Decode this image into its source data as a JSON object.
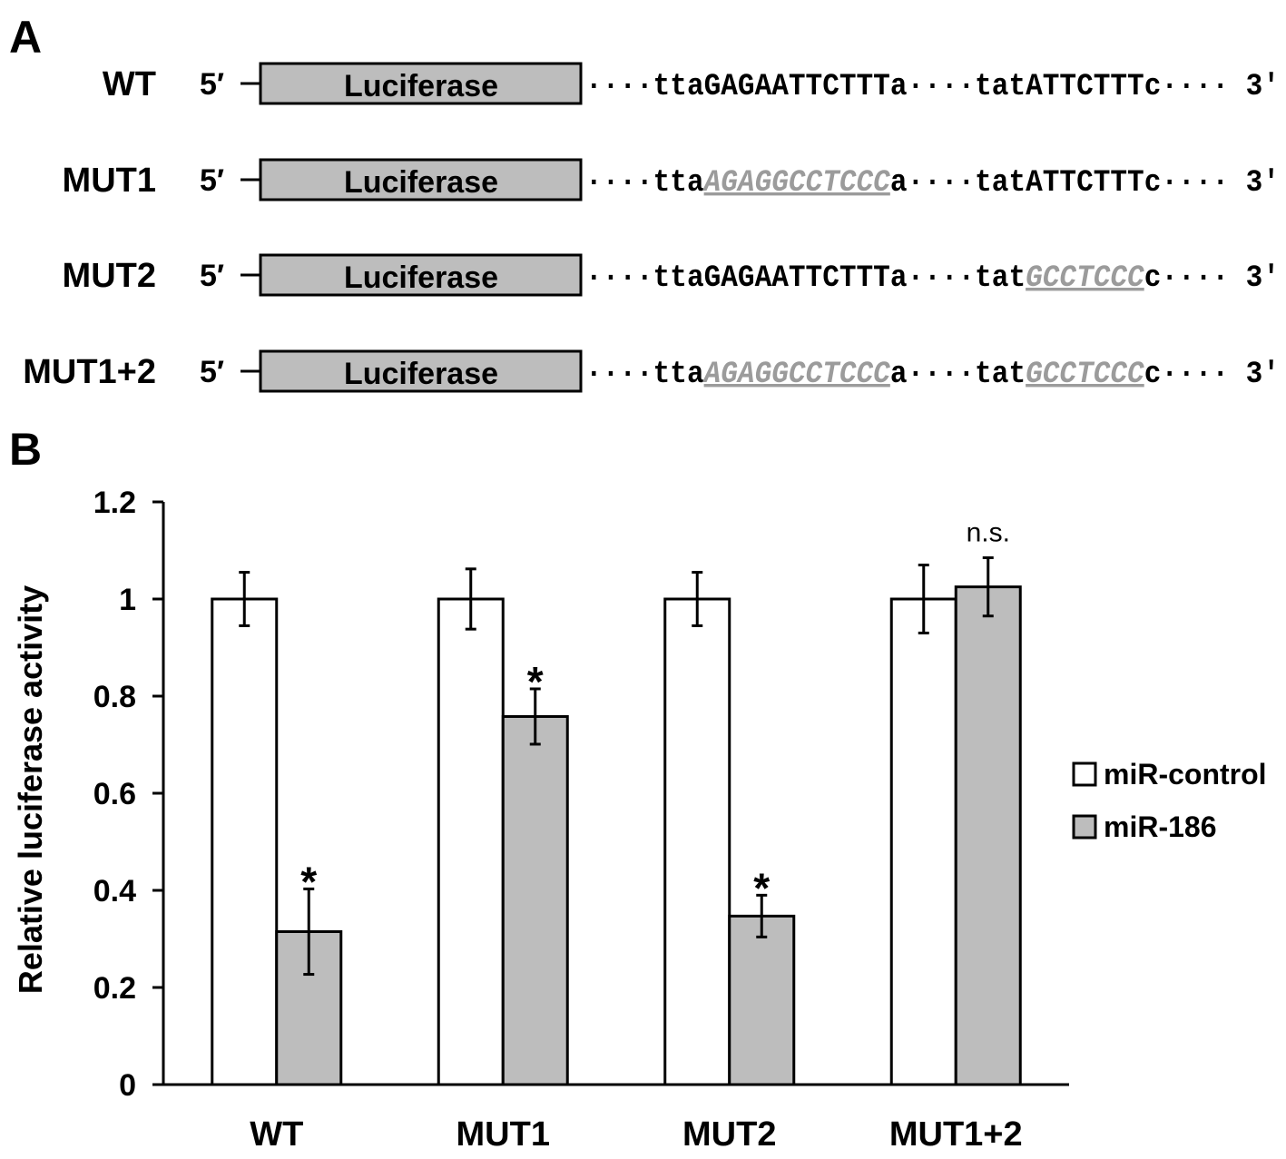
{
  "panel_a": {
    "letter": "A",
    "five_prime": "5′",
    "three_prime": "3′",
    "box_label": "Luciferase",
    "constructs": [
      {
        "name": "WT",
        "site1": {
          "pre": "tta",
          "core": "GAGAATTCTTT",
          "core_mutated": false,
          "post": "a"
        },
        "site2": {
          "pre": "tat",
          "core": "ATTCTTT",
          "core_mutated": false,
          "post": "c"
        }
      },
      {
        "name": "MUT1",
        "site1": {
          "pre": "tta",
          "core": "AGAGGCCTCCC",
          "core_mutated": true,
          "post": "a"
        },
        "site2": {
          "pre": "tat",
          "core": "ATTCTTT",
          "core_mutated": false,
          "post": "c"
        }
      },
      {
        "name": "MUT2",
        "site1": {
          "pre": "tta",
          "core": "GAGAATTCTTT",
          "core_mutated": false,
          "post": "a"
        },
        "site2": {
          "pre": "tat",
          "core": "GCCTCCC",
          "core_mutated": true,
          "post": "c"
        }
      },
      {
        "name": "MUT1+2",
        "site1": {
          "pre": "tta",
          "core": "AGAGGCCTCCC",
          "core_mutated": true,
          "post": "a"
        },
        "site2": {
          "pre": "tat",
          "core": "GCCTCCC",
          "core_mutated": true,
          "post": "c"
        }
      }
    ],
    "colors": {
      "box_fill": "#bdbdbd",
      "mutated_text": "#9b9b9b"
    }
  },
  "panel_b": {
    "letter": "B"
  },
  "chart_data": {
    "type": "bar",
    "title": "",
    "xlabel": "",
    "ylabel": "Relative luciferase activity",
    "ylim": [
      0,
      1.2
    ],
    "yticks": [
      0,
      0.2,
      0.4,
      0.6,
      0.8,
      1,
      1.2
    ],
    "ytick_labels": [
      "0",
      "0.2",
      "0.4",
      "0.6",
      "0.8",
      "1",
      "1.2"
    ],
    "categories": [
      "WT",
      "MUT1",
      "MUT2",
      "MUT1+2"
    ],
    "series": [
      {
        "name": "miR-control",
        "color": "#ffffff",
        "values": [
          1.0,
          1.0,
          1.0,
          1.0
        ],
        "errors": [
          0.055,
          0.062,
          0.055,
          0.07
        ]
      },
      {
        "name": "miR-186",
        "color": "#bdbdbd",
        "values": [
          0.315,
          0.758,
          0.347,
          1.025
        ],
        "errors": [
          0.088,
          0.057,
          0.043,
          0.06
        ]
      }
    ],
    "annotations": [
      "*",
      "*",
      "*",
      "n.s."
    ],
    "legend": "right",
    "grid": false
  }
}
